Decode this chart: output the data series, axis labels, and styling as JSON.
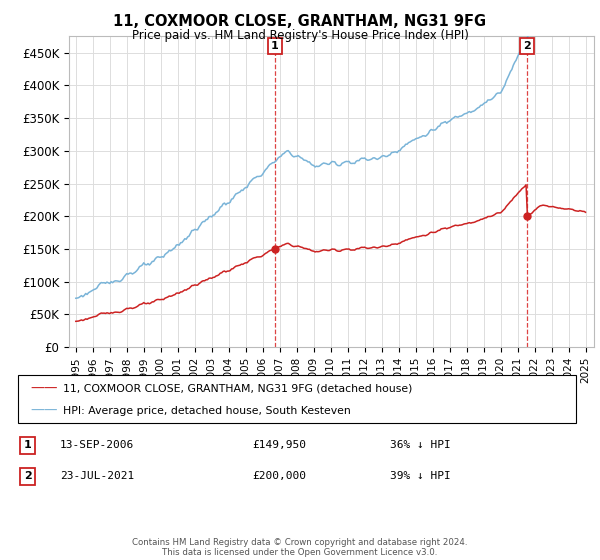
{
  "title": "11, COXMOOR CLOSE, GRANTHAM, NG31 9FG",
  "subtitle": "Price paid vs. HM Land Registry's House Price Index (HPI)",
  "legend_line1": "11, COXMOOR CLOSE, GRANTHAM, NG31 9FG (detached house)",
  "legend_line2": "HPI: Average price, detached house, South Kesteven",
  "transaction1_date": "13-SEP-2006",
  "transaction1_price": "£149,950",
  "transaction1_hpi": "36% ↓ HPI",
  "transaction1_year": 2006.71,
  "transaction1_value": 149950,
  "transaction2_date": "23-JUL-2021",
  "transaction2_price": "£200,000",
  "transaction2_hpi": "39% ↓ HPI",
  "transaction2_year": 2021.55,
  "transaction2_value": 200000,
  "yticks": [
    0,
    50000,
    100000,
    150000,
    200000,
    250000,
    300000,
    350000,
    400000,
    450000
  ],
  "ylim": [
    0,
    475000
  ],
  "xlim_left": 1994.6,
  "xlim_right": 2025.5,
  "hpi_color": "#7ab4d8",
  "price_color": "#cc2222",
  "vline_color": "#dd4444",
  "background_color": "#ffffff",
  "grid_color": "#dddddd",
  "footer": "Contains HM Land Registry data © Crown copyright and database right 2024.\nThis data is licensed under the Open Government Licence v3.0."
}
